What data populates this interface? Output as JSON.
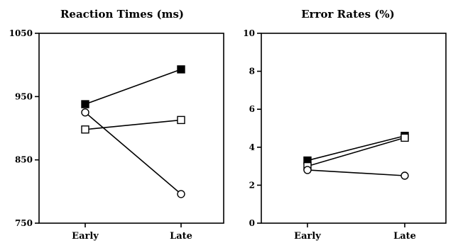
{
  "chart_data": [
    {
      "type": "line",
      "title": "Reaction Times (ms)",
      "xlabel": "",
      "ylabel": "",
      "categories": [
        "Early",
        "Late"
      ],
      "ylim": [
        750,
        1050
      ],
      "yticks": [
        "750",
        "850",
        "950",
        "1050"
      ],
      "series": [
        {
          "marker": "filled-square",
          "values": [
            938,
            993
          ]
        },
        {
          "marker": "open-square",
          "values": [
            898,
            913
          ]
        },
        {
          "marker": "open-circle",
          "values": [
            925,
            796
          ]
        }
      ]
    },
    {
      "type": "line",
      "title": "Error Rates (%)",
      "xlabel": "",
      "ylabel": "",
      "categories": [
        "Early",
        "Late"
      ],
      "ylim": [
        0,
        10
      ],
      "yticks": [
        "0",
        "2",
        "4",
        "6",
        "8",
        "10"
      ],
      "series": [
        {
          "marker": "filled-square",
          "values": [
            3.3,
            4.6
          ]
        },
        {
          "marker": "open-square",
          "values": [
            3.0,
            4.5
          ]
        },
        {
          "marker": "open-circle",
          "values": [
            2.8,
            2.5
          ]
        }
      ]
    }
  ]
}
